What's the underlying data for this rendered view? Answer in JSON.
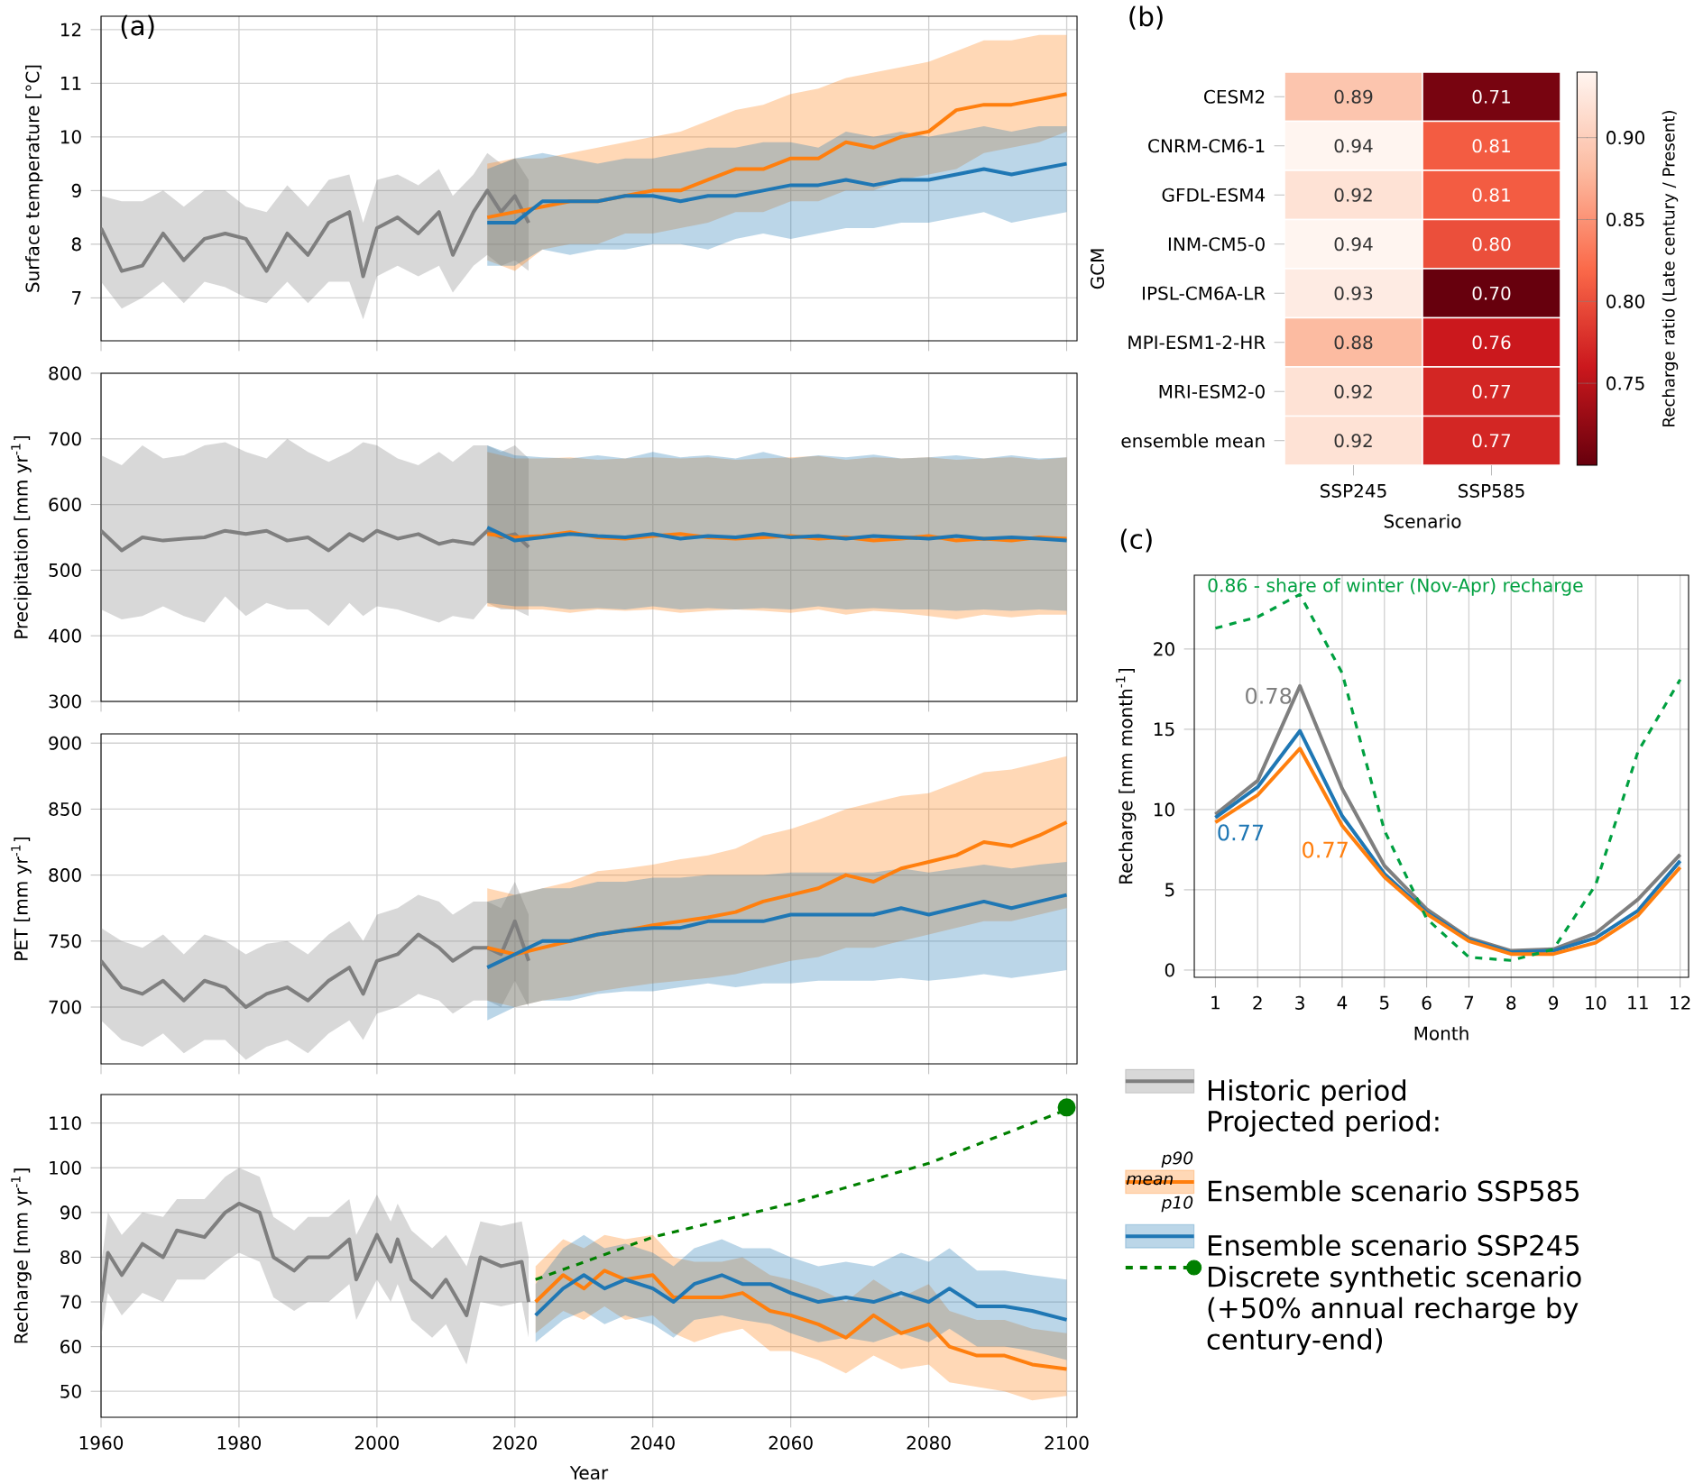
{
  "chart_data": [
    {
      "type": "line",
      "title": "(a)",
      "ylabel": "Surface temperature [°C]",
      "xlim": [
        1960,
        2101.5
      ],
      "xticks": [
        1960,
        1980,
        2000,
        2020,
        2040,
        2060,
        2080,
        2100
      ],
      "ylim": [
        6.2,
        12.25
      ],
      "yticks": [
        7,
        8,
        9,
        10,
        11,
        12
      ],
      "grid": true,
      "tick_labels": "y",
      "series": [
        {
          "color": "#7f7f7f",
          "x": [
            1960,
            1963,
            1966,
            1969,
            1972,
            1975,
            1978,
            1981,
            1984,
            1987,
            1990,
            1993,
            1996,
            1998,
            2000,
            2003,
            2006,
            2009,
            2011,
            2014,
            2016,
            2018,
            2020,
            2022
          ],
          "values": [
            8.3,
            7.5,
            7.6,
            8.2,
            7.7,
            8.1,
            8.2,
            8.1,
            7.5,
            8.2,
            7.8,
            8.4,
            8.6,
            7.4,
            8.3,
            8.5,
            8.2,
            8.6,
            7.8,
            8.6,
            9.0,
            8.6,
            8.9,
            8.4
          ],
          "lower": [
            7.3,
            6.8,
            7.0,
            7.3,
            6.9,
            7.3,
            7.2,
            7.0,
            6.9,
            7.3,
            6.9,
            7.3,
            7.3,
            6.6,
            7.4,
            7.6,
            7.4,
            7.6,
            7.1,
            7.6,
            7.8,
            7.6,
            7.7,
            7.5
          ],
          "upper": [
            8.9,
            8.8,
            8.8,
            9.0,
            8.7,
            9.0,
            9.0,
            8.7,
            8.6,
            9.1,
            8.7,
            9.2,
            9.3,
            8.4,
            9.2,
            9.3,
            9.1,
            9.4,
            8.9,
            9.3,
            9.7,
            9.5,
            9.6,
            9.2
          ]
        },
        {
          "color": "#ff7f0e",
          "x": [
            2016,
            2020,
            2024,
            2028,
            2032,
            2036,
            2040,
            2044,
            2048,
            2052,
            2056,
            2060,
            2064,
            2068,
            2072,
            2076,
            2080,
            2084,
            2088,
            2092,
            2096,
            2100
          ],
          "values": [
            8.5,
            8.6,
            8.7,
            8.8,
            8.8,
            8.9,
            9.0,
            9.0,
            9.2,
            9.4,
            9.4,
            9.6,
            9.6,
            9.9,
            9.8,
            10.0,
            10.1,
            10.5,
            10.6,
            10.6,
            10.7,
            10.8
          ],
          "lower": [
            7.7,
            7.5,
            7.9,
            8.0,
            8.0,
            8.2,
            8.2,
            8.3,
            8.4,
            8.6,
            8.6,
            8.8,
            8.8,
            9.0,
            9.0,
            9.2,
            9.3,
            9.4,
            9.7,
            9.8,
            9.9,
            10.1
          ],
          "upper": [
            9.5,
            9.6,
            9.6,
            9.7,
            9.8,
            9.9,
            10.0,
            10.1,
            10.3,
            10.5,
            10.6,
            10.8,
            10.9,
            11.1,
            11.2,
            11.3,
            11.4,
            11.6,
            11.8,
            11.8,
            11.9,
            11.9
          ]
        },
        {
          "color": "#1f77b4",
          "x": [
            2016,
            2020,
            2024,
            2028,
            2032,
            2036,
            2040,
            2044,
            2048,
            2052,
            2056,
            2060,
            2064,
            2068,
            2072,
            2076,
            2080,
            2084,
            2088,
            2092,
            2096,
            2100
          ],
          "values": [
            8.4,
            8.4,
            8.8,
            8.8,
            8.8,
            8.9,
            8.9,
            8.8,
            8.9,
            8.9,
            9.0,
            9.1,
            9.1,
            9.2,
            9.1,
            9.2,
            9.2,
            9.3,
            9.4,
            9.3,
            9.4,
            9.5
          ],
          "lower": [
            7.6,
            7.6,
            7.9,
            7.8,
            7.9,
            7.9,
            8.0,
            8.0,
            7.9,
            8.1,
            8.2,
            8.1,
            8.2,
            8.3,
            8.3,
            8.4,
            8.4,
            8.5,
            8.6,
            8.4,
            8.5,
            8.6
          ],
          "upper": [
            9.4,
            9.6,
            9.7,
            9.6,
            9.5,
            9.6,
            9.6,
            9.7,
            9.8,
            9.8,
            9.9,
            9.9,
            9.8,
            10.1,
            10.0,
            10.1,
            10.0,
            10.1,
            10.2,
            10.1,
            10.2,
            10.2
          ]
        }
      ]
    },
    {
      "type": "line",
      "ylabel": "Precipitation [mm yr$^{-1}$]",
      "xlim": [
        1960,
        2101.5
      ],
      "xticks": [
        1960,
        1980,
        2000,
        2020,
        2040,
        2060,
        2080,
        2100
      ],
      "ylim": [
        300,
        800
      ],
      "yticks": [
        300,
        400,
        500,
        600,
        700,
        800
      ],
      "grid": true,
      "tick_labels": "y",
      "series": [
        {
          "color": "#7f7f7f",
          "x": [
            1960,
            1963,
            1966,
            1969,
            1972,
            1975,
            1978,
            1981,
            1984,
            1987,
            1990,
            1993,
            1996,
            1998,
            2000,
            2003,
            2006,
            2009,
            2011,
            2014,
            2016,
            2018,
            2020,
            2022
          ],
          "values": [
            560,
            530,
            550,
            545,
            548,
            550,
            560,
            555,
            560,
            545,
            550,
            530,
            555,
            545,
            560,
            548,
            555,
            540,
            545,
            540,
            560,
            550,
            555,
            535
          ],
          "lower": [
            440,
            425,
            430,
            445,
            430,
            420,
            460,
            430,
            450,
            440,
            440,
            415,
            450,
            430,
            445,
            440,
            430,
            420,
            430,
            425,
            450,
            440,
            440,
            430
          ],
          "upper": [
            675,
            660,
            690,
            670,
            675,
            690,
            695,
            680,
            670,
            700,
            680,
            665,
            680,
            695,
            690,
            670,
            660,
            680,
            665,
            690,
            690,
            680,
            690,
            670
          ]
        },
        {
          "color": "#ff7f0e",
          "x": [
            2016,
            2020,
            2024,
            2028,
            2032,
            2036,
            2040,
            2044,
            2048,
            2052,
            2056,
            2060,
            2064,
            2068,
            2072,
            2076,
            2080,
            2084,
            2088,
            2092,
            2096,
            2100
          ],
          "values": [
            555,
            550,
            552,
            558,
            550,
            548,
            552,
            555,
            550,
            548,
            550,
            552,
            548,
            550,
            545,
            548,
            552,
            545,
            548,
            545,
            550,
            548
          ],
          "lower": [
            445,
            440,
            440,
            435,
            440,
            438,
            440,
            435,
            438,
            440,
            438,
            435,
            440,
            432,
            438,
            435,
            430,
            425,
            432,
            428,
            432,
            432
          ],
          "upper": [
            680,
            670,
            670,
            672,
            668,
            670,
            672,
            670,
            672,
            668,
            670,
            672,
            674,
            668,
            672,
            670,
            672,
            668,
            670,
            672,
            668,
            672
          ]
        },
        {
          "color": "#1f77b4",
          "x": [
            2016,
            2020,
            2024,
            2028,
            2032,
            2036,
            2040,
            2044,
            2048,
            2052,
            2056,
            2060,
            2064,
            2068,
            2072,
            2076,
            2080,
            2084,
            2088,
            2092,
            2096,
            2100
          ],
          "values": [
            565,
            545,
            550,
            555,
            552,
            550,
            555,
            548,
            552,
            550,
            555,
            550,
            552,
            548,
            552,
            550,
            548,
            552,
            548,
            550,
            548,
            545
          ],
          "lower": [
            450,
            445,
            445,
            440,
            442,
            440,
            445,
            440,
            442,
            440,
            442,
            440,
            445,
            440,
            442,
            440,
            440,
            438,
            440,
            438,
            440,
            438
          ],
          "upper": [
            690,
            675,
            672,
            670,
            675,
            670,
            680,
            672,
            675,
            670,
            680,
            670,
            675,
            672,
            676,
            670,
            672,
            675,
            670,
            675,
            670,
            672
          ]
        }
      ]
    },
    {
      "type": "line",
      "ylabel": "PET [mm yr$^{-1}$]",
      "xlim": [
        1960,
        2101.5
      ],
      "xticks": [
        1960,
        1980,
        2000,
        2020,
        2040,
        2060,
        2080,
        2100
      ],
      "ylim": [
        657,
        907
      ],
      "yticks": [
        700,
        750,
        800,
        850,
        900
      ],
      "grid": true,
      "tick_labels": "y",
      "series": [
        {
          "color": "#7f7f7f",
          "x": [
            1960,
            1963,
            1966,
            1969,
            1972,
            1975,
            1978,
            1981,
            1984,
            1987,
            1990,
            1993,
            1996,
            1998,
            2000,
            2003,
            2006,
            2009,
            2011,
            2014,
            2016,
            2018,
            2020,
            2022
          ],
          "values": [
            735,
            715,
            710,
            720,
            705,
            720,
            715,
            700,
            710,
            715,
            705,
            720,
            730,
            710,
            735,
            740,
            755,
            745,
            735,
            745,
            745,
            740,
            765,
            735
          ],
          "lower": [
            690,
            675,
            670,
            680,
            665,
            675,
            675,
            660,
            670,
            675,
            665,
            680,
            690,
            675,
            695,
            700,
            710,
            705,
            695,
            705,
            705,
            700,
            720,
            700
          ],
          "upper": [
            760,
            750,
            745,
            755,
            740,
            755,
            750,
            740,
            748,
            750,
            740,
            755,
            765,
            750,
            770,
            775,
            785,
            780,
            770,
            780,
            780,
            775,
            795,
            770
          ]
        },
        {
          "color": "#ff7f0e",
          "x": [
            2016,
            2020,
            2024,
            2028,
            2032,
            2036,
            2040,
            2044,
            2048,
            2052,
            2056,
            2060,
            2064,
            2068,
            2072,
            2076,
            2080,
            2084,
            2088,
            2092,
            2096,
            2100
          ],
          "values": [
            745,
            740,
            745,
            750,
            755,
            758,
            762,
            765,
            768,
            772,
            780,
            785,
            790,
            800,
            795,
            805,
            810,
            815,
            825,
            822,
            830,
            840
          ],
          "lower": [
            705,
            700,
            705,
            708,
            712,
            715,
            718,
            720,
            722,
            725,
            730,
            735,
            738,
            745,
            745,
            750,
            755,
            760,
            765,
            765,
            770,
            775
          ],
          "upper": [
            790,
            785,
            790,
            795,
            803,
            805,
            808,
            812,
            815,
            820,
            830,
            835,
            842,
            850,
            855,
            860,
            862,
            870,
            878,
            880,
            885,
            890
          ]
        },
        {
          "color": "#1f77b4",
          "x": [
            2016,
            2020,
            2024,
            2028,
            2032,
            2036,
            2040,
            2044,
            2048,
            2052,
            2056,
            2060,
            2064,
            2068,
            2072,
            2076,
            2080,
            2084,
            2088,
            2092,
            2096,
            2100
          ],
          "values": [
            730,
            740,
            750,
            750,
            755,
            758,
            760,
            760,
            765,
            765,
            765,
            770,
            770,
            770,
            770,
            775,
            770,
            775,
            780,
            775,
            780,
            785
          ],
          "lower": [
            690,
            700,
            705,
            705,
            710,
            712,
            712,
            715,
            718,
            715,
            718,
            718,
            720,
            720,
            720,
            722,
            720,
            722,
            725,
            722,
            725,
            728
          ],
          "upper": [
            780,
            785,
            790,
            790,
            795,
            795,
            798,
            798,
            800,
            800,
            800,
            802,
            802,
            802,
            802,
            805,
            802,
            805,
            808,
            805,
            808,
            810
          ]
        }
      ]
    },
    {
      "type": "line",
      "xlabel": "Year",
      "ylabel": "Recharge [mm yr$^{-1}$]",
      "xlim": [
        1960,
        2101.5
      ],
      "xticks": [
        1960,
        1980,
        2000,
        2020,
        2040,
        2060,
        2080,
        2100
      ],
      "ylim": [
        44.2,
        116.4
      ],
      "yticks": [
        50,
        60,
        70,
        80,
        90,
        100,
        110
      ],
      "grid": true,
      "legend": "right",
      "legend_title": "Projected period:",
      "annotations": [
        "p90",
        "mean",
        "p10"
      ],
      "series": [
        {
          "name": "Historic period",
          "color": "#7f7f7f",
          "x": [
            1960,
            1961,
            1963,
            1966,
            1969,
            1971,
            1975,
            1978,
            1980,
            1983,
            1985,
            1988,
            1990,
            1993,
            1996,
            1997,
            2000,
            2002,
            2003,
            2005,
            2008,
            2010,
            2013,
            2015,
            2018,
            2021,
            2022
          ],
          "values": [
            70,
            81,
            76,
            83,
            80,
            86,
            84.5,
            90,
            92,
            90,
            80,
            77,
            80,
            80,
            84,
            75,
            85,
            79,
            84,
            75,
            71,
            75,
            67,
            80,
            78,
            79,
            70
          ],
          "lower": [
            62,
            72,
            67,
            72,
            70,
            75,
            75,
            79,
            81,
            79,
            71,
            68,
            70,
            70,
            74,
            66,
            75,
            70,
            74,
            66,
            62,
            65,
            56,
            70,
            69,
            70,
            62
          ],
          "upper": [
            78,
            90,
            85,
            90,
            89,
            93,
            93,
            98,
            100,
            98,
            89,
            86,
            89,
            89,
            93,
            85,
            94,
            88,
            92,
            86,
            82,
            85,
            78,
            88,
            87,
            88,
            80
          ]
        },
        {
          "name": "Ensemble scenario SSP585",
          "color": "#ff7f0e",
          "x": [
            2023,
            2027,
            2030,
            2033,
            2036,
            2040,
            2043,
            2046,
            2050,
            2053,
            2057,
            2060,
            2064,
            2068,
            2072,
            2076,
            2080,
            2083,
            2087,
            2091,
            2095,
            2100
          ],
          "values": [
            70,
            76,
            73,
            77,
            75,
            76,
            71,
            71,
            71,
            72,
            68,
            67,
            65,
            62,
            67,
            63,
            65,
            60,
            58,
            58,
            56,
            55
          ],
          "lower": [
            63,
            68,
            66,
            69,
            66,
            67,
            63,
            61,
            63,
            64,
            59,
            59,
            57,
            54,
            58,
            55,
            56,
            52,
            51,
            50,
            48,
            49
          ],
          "upper": [
            78,
            84,
            82,
            85,
            84,
            85,
            80,
            79,
            79,
            80,
            76,
            75,
            73,
            70,
            75,
            71,
            74,
            68,
            66,
            66,
            64,
            63
          ]
        },
        {
          "name": "Ensemble scenario SSP245",
          "color": "#1f77b4",
          "x": [
            2023,
            2027,
            2030,
            2033,
            2036,
            2040,
            2043,
            2046,
            2050,
            2053,
            2057,
            2060,
            2064,
            2068,
            2072,
            2076,
            2080,
            2083,
            2087,
            2091,
            2095,
            2100
          ],
          "values": [
            67,
            73,
            76,
            73,
            75,
            73,
            70,
            74,
            76,
            74,
            74,
            72,
            70,
            71,
            70,
            72,
            70,
            73,
            69,
            69,
            68,
            66
          ],
          "lower": [
            61,
            66,
            68,
            65,
            67,
            65,
            62,
            66,
            67,
            66,
            65,
            63,
            61,
            62,
            61,
            63,
            61,
            64,
            60,
            60,
            59,
            57
          ],
          "upper": [
            74,
            82,
            85,
            82,
            83,
            81,
            78,
            82,
            84,
            82,
            82,
            80,
            78,
            79,
            78,
            81,
            79,
            82,
            77,
            77,
            76,
            75
          ]
        },
        {
          "name": "Discrete synthetic scenario (+50% annual recharge by century-end)",
          "color": "#008000",
          "line_style": "dashed",
          "x": [
            2023,
            2040,
            2060,
            2080,
            2100
          ],
          "values": [
            75,
            84.5,
            92,
            101,
            113
          ]
        },
        {
          "type": "scatter",
          "marker": "circle",
          "color": "#008000",
          "x": [
            2100
          ],
          "values": [
            113.5
          ]
        }
      ]
    },
    {
      "type": "heatmap",
      "title": "(b)",
      "xlabel": "Scenario",
      "ylabel": "GCM",
      "clabel": "Recharge ratio (Late century / Present)",
      "categories": [
        "SSP245",
        "SSP585"
      ],
      "y_categories": [
        "CESM2",
        "CNRM-CM6-1",
        "GFDL-ESM4",
        "INM-CM5-0",
        "IPSL-CM6A-LR",
        "MPI-ESM1-2-HR",
        "MRI-ESM2-0",
        "ensemble mean"
      ],
      "cells": [
        [
          0.89,
          0.71
        ],
        [
          0.94,
          0.81
        ],
        [
          0.92,
          0.81
        ],
        [
          0.94,
          0.8
        ],
        [
          0.93,
          0.7
        ],
        [
          0.88,
          0.76
        ],
        [
          0.92,
          0.77
        ],
        [
          0.92,
          0.77
        ]
      ],
      "cell_labels": [
        [
          "0.89",
          "0.71"
        ],
        [
          "0.94",
          "0.81"
        ],
        [
          "0.92",
          "0.81"
        ],
        [
          "0.94",
          "0.80"
        ],
        [
          "0.93",
          "0.70"
        ],
        [
          "0.88",
          "0.76"
        ],
        [
          "0.92",
          "0.77"
        ],
        [
          "0.92",
          "0.77"
        ]
      ],
      "clim": [
        0.7,
        0.94
      ],
      "cticks": [
        {
          "value": 0.75,
          "label": "0.75"
        },
        {
          "value": 0.8,
          "label": "0.80"
        },
        {
          "value": 0.85,
          "label": "0.85"
        },
        {
          "value": 0.9,
          "label": "0.90"
        }
      ]
    },
    {
      "type": "line",
      "title": "(c)",
      "xlabel": "Month",
      "ylabel": "Recharge [mm month$^{-1}$]",
      "x": [
        1,
        2,
        3,
        4,
        5,
        6,
        7,
        8,
        9,
        10,
        11,
        12
      ],
      "xlim": [
        0.5,
        12.2
      ],
      "xticks": [
        1,
        2,
        3,
        4,
        5,
        6,
        7,
        8,
        9,
        10,
        11,
        12
      ],
      "ylim": [
        -0.45,
        24.6
      ],
      "yticks": [
        0,
        5,
        10,
        15,
        20
      ],
      "grid": true,
      "annotations": [
        "0.78",
        "0.77",
        "0.77",
        "0.86 - share of winter (Nov-Apr) recharge"
      ],
      "series": [
        {
          "color": "#7f7f7f",
          "values": [
            9.7,
            11.8,
            17.7,
            11.3,
            6.5,
            3.8,
            2.0,
            1.2,
            1.3,
            2.3,
            4.4,
            7.2
          ]
        },
        {
          "color": "#1f77b4",
          "values": [
            9.5,
            11.4,
            14.9,
            9.6,
            6.0,
            3.6,
            1.9,
            1.1,
            1.2,
            2.0,
            3.7,
            6.8
          ]
        },
        {
          "color": "#ff7f0e",
          "values": [
            9.2,
            10.9,
            13.8,
            9.0,
            5.8,
            3.5,
            1.8,
            1.0,
            1.0,
            1.7,
            3.4,
            6.4
          ]
        },
        {
          "color": "#00a040",
          "line_style": "dashed",
          "values": [
            21.3,
            22.0,
            23.4,
            18.5,
            8.7,
            3.2,
            0.8,
            0.6,
            1.3,
            5.3,
            13.6,
            18.1
          ]
        }
      ]
    }
  ]
}
